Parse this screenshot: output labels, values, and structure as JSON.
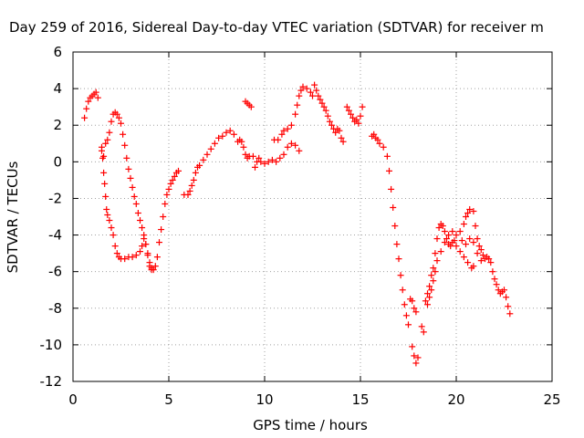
{
  "chart_data": {
    "type": "scatter",
    "title": "Day 259 of 2016, Sidereal Day-to-day VTEC variation (SDTVAR) for receiver m",
    "xlabel": "GPS time / hours",
    "ylabel": "SDTVAR / TECUs",
    "xlim": [
      0,
      25
    ],
    "ylim": [
      -12,
      6
    ],
    "xticks": [
      0,
      5,
      10,
      15,
      20,
      25
    ],
    "yticks": [
      -12,
      -10,
      -8,
      -6,
      -4,
      -2,
      0,
      2,
      4,
      6
    ],
    "grid": true,
    "legend": "none",
    "marker": "plus",
    "color": "#ff0000",
    "series": [
      {
        "values": [
          [
            0.6,
            2.4
          ],
          [
            0.7,
            2.9
          ],
          [
            0.8,
            3.3
          ],
          [
            0.9,
            3.5
          ],
          [
            1.0,
            3.6
          ],
          [
            1.1,
            3.7
          ],
          [
            1.2,
            3.8
          ],
          [
            1.3,
            3.5
          ],
          [
            1.5,
            0.6
          ],
          [
            1.55,
            0.2
          ],
          [
            1.6,
            -0.6
          ],
          [
            1.65,
            -1.2
          ],
          [
            1.7,
            -1.9
          ],
          [
            1.75,
            -2.6
          ],
          [
            1.8,
            -2.9
          ],
          [
            1.9,
            -3.2
          ],
          [
            2.0,
            -3.6
          ],
          [
            2.1,
            -4.0
          ],
          [
            2.2,
            -4.6
          ],
          [
            2.3,
            -5.0
          ],
          [
            2.4,
            -5.2
          ],
          [
            2.5,
            -5.3
          ],
          [
            2.7,
            -5.3
          ],
          [
            2.9,
            -5.2
          ],
          [
            3.1,
            -5.2
          ],
          [
            3.3,
            -5.1
          ],
          [
            3.5,
            -4.9
          ],
          [
            3.6,
            -4.6
          ],
          [
            3.7,
            -4.2
          ],
          [
            3.8,
            -4.5
          ],
          [
            3.9,
            -5.1
          ],
          [
            4.0,
            -5.5
          ],
          [
            4.1,
            -5.8
          ],
          [
            4.2,
            -5.9
          ],
          [
            4.3,
            -5.7
          ],
          [
            4.4,
            -5.2
          ],
          [
            4.5,
            -4.4
          ],
          [
            4.6,
            -3.7
          ],
          [
            4.7,
            -3.0
          ],
          [
            4.8,
            -2.3
          ],
          [
            4.9,
            -1.8
          ],
          [
            5.0,
            -1.5
          ],
          [
            5.1,
            -1.2
          ],
          [
            5.2,
            -1.0
          ],
          [
            5.3,
            -0.8
          ],
          [
            5.4,
            -0.6
          ],
          [
            5.5,
            -0.5
          ],
          [
            1.5,
            0.8
          ],
          [
            1.6,
            0.3
          ],
          [
            1.7,
            1.0
          ],
          [
            1.8,
            1.2
          ],
          [
            1.9,
            1.6
          ],
          [
            2.0,
            2.2
          ],
          [
            2.1,
            2.6
          ],
          [
            2.2,
            2.7
          ],
          [
            2.3,
            2.6
          ],
          [
            2.4,
            2.4
          ],
          [
            2.5,
            2.1
          ],
          [
            2.6,
            1.5
          ],
          [
            2.7,
            0.9
          ],
          [
            2.8,
            0.2
          ],
          [
            2.9,
            -0.4
          ],
          [
            3.0,
            -0.9
          ],
          [
            3.1,
            -1.4
          ],
          [
            3.2,
            -1.9
          ],
          [
            3.3,
            -2.3
          ],
          [
            3.4,
            -2.8
          ],
          [
            3.5,
            -3.2
          ],
          [
            3.6,
            -3.6
          ],
          [
            3.7,
            -4.0
          ],
          [
            3.8,
            -4.5
          ],
          [
            3.9,
            -5.0
          ],
          [
            4.0,
            -5.7
          ],
          [
            4.1,
            -5.9
          ],
          [
            5.8,
            -1.8
          ],
          [
            6.0,
            -1.8
          ],
          [
            6.1,
            -1.6
          ],
          [
            6.2,
            -1.3
          ],
          [
            6.3,
            -1.0
          ],
          [
            6.4,
            -0.6
          ],
          [
            6.5,
            -0.3
          ],
          [
            6.6,
            -0.2
          ],
          [
            6.8,
            0.1
          ],
          [
            7.0,
            0.4
          ],
          [
            7.2,
            0.7
          ],
          [
            7.4,
            1.0
          ],
          [
            7.6,
            1.3
          ],
          [
            7.8,
            1.4
          ],
          [
            8.0,
            1.6
          ],
          [
            8.2,
            1.7
          ],
          [
            8.4,
            1.5
          ],
          [
            8.6,
            1.1
          ],
          [
            8.7,
            1.2
          ],
          [
            8.8,
            1.1
          ],
          [
            8.9,
            0.8
          ],
          [
            9.0,
            0.4
          ],
          [
            9.1,
            0.2
          ],
          [
            9.2,
            0.3
          ],
          [
            9.4,
            0.3
          ],
          [
            9.5,
            -0.3
          ],
          [
            9.6,
            0.0
          ],
          [
            9.7,
            0.2
          ],
          [
            9.8,
            0.0
          ],
          [
            10.0,
            -0.1
          ],
          [
            10.2,
            0.0
          ],
          [
            10.4,
            0.1
          ],
          [
            10.6,
            0.0
          ],
          [
            10.8,
            0.2
          ],
          [
            11.0,
            0.4
          ],
          [
            11.2,
            0.8
          ],
          [
            11.4,
            1.0
          ],
          [
            11.6,
            0.9
          ],
          [
            11.8,
            0.6
          ],
          [
            9.0,
            3.3
          ],
          [
            9.1,
            3.2
          ],
          [
            9.2,
            3.1
          ],
          [
            9.3,
            3.0
          ],
          [
            10.5,
            1.2
          ],
          [
            10.7,
            1.2
          ],
          [
            10.9,
            1.5
          ],
          [
            11.0,
            1.7
          ],
          [
            11.2,
            1.8
          ],
          [
            11.4,
            2.0
          ],
          [
            11.6,
            2.6
          ],
          [
            11.7,
            3.1
          ],
          [
            11.8,
            3.6
          ],
          [
            11.9,
            3.9
          ],
          [
            12.0,
            4.1
          ],
          [
            12.2,
            4.0
          ],
          [
            12.4,
            3.8
          ],
          [
            12.5,
            3.6
          ],
          [
            12.6,
            4.2
          ],
          [
            12.7,
            3.9
          ],
          [
            12.8,
            3.6
          ],
          [
            12.9,
            3.4
          ],
          [
            13.0,
            3.2
          ],
          [
            13.1,
            3.0
          ],
          [
            13.2,
            2.8
          ],
          [
            13.3,
            2.5
          ],
          [
            13.4,
            2.2
          ],
          [
            13.5,
            2.0
          ],
          [
            13.6,
            1.8
          ],
          [
            13.7,
            1.6
          ],
          [
            13.8,
            1.8
          ],
          [
            13.9,
            1.7
          ],
          [
            14.0,
            1.3
          ],
          [
            14.1,
            1.1
          ],
          [
            14.3,
            3.0
          ],
          [
            14.4,
            2.8
          ],
          [
            14.5,
            2.6
          ],
          [
            14.6,
            2.4
          ],
          [
            14.7,
            2.2
          ],
          [
            14.8,
            2.3
          ],
          [
            14.9,
            2.1
          ],
          [
            15.0,
            2.5
          ],
          [
            15.1,
            3.0
          ],
          [
            15.6,
            1.4
          ],
          [
            15.7,
            1.5
          ],
          [
            15.8,
            1.3
          ],
          [
            15.9,
            1.2
          ],
          [
            16.0,
            1.0
          ],
          [
            16.2,
            0.8
          ],
          [
            16.4,
            0.3
          ],
          [
            16.5,
            -0.5
          ],
          [
            16.6,
            -1.5
          ],
          [
            16.7,
            -2.5
          ],
          [
            16.8,
            -3.5
          ],
          [
            16.9,
            -4.5
          ],
          [
            17.0,
            -5.3
          ],
          [
            17.1,
            -6.2
          ],
          [
            17.2,
            -7.0
          ],
          [
            17.3,
            -7.8
          ],
          [
            17.4,
            -8.4
          ],
          [
            17.5,
            -8.9
          ],
          [
            17.6,
            -7.5
          ],
          [
            17.7,
            -7.6
          ],
          [
            17.8,
            -8.0
          ],
          [
            17.9,
            -8.2
          ],
          [
            17.7,
            -10.1
          ],
          [
            17.8,
            -10.6
          ],
          [
            17.9,
            -11.0
          ],
          [
            18.0,
            -10.7
          ],
          [
            18.2,
            -9.0
          ],
          [
            18.3,
            -9.3
          ],
          [
            18.4,
            -7.6
          ],
          [
            18.5,
            -7.2
          ],
          [
            18.6,
            -6.8
          ],
          [
            18.7,
            -6.2
          ],
          [
            18.8,
            -5.8
          ],
          [
            18.9,
            -5.0
          ],
          [
            19.0,
            -4.2
          ],
          [
            19.1,
            -3.6
          ],
          [
            19.2,
            -3.4
          ],
          [
            19.3,
            -3.5
          ],
          [
            19.4,
            -3.8
          ],
          [
            19.5,
            -4.2
          ],
          [
            19.6,
            -4.5
          ],
          [
            19.7,
            -4.6
          ],
          [
            19.8,
            -4.4
          ],
          [
            19.9,
            -4.3
          ],
          [
            20.0,
            -4.6
          ],
          [
            20.2,
            -4.9
          ],
          [
            20.4,
            -5.2
          ],
          [
            20.6,
            -5.5
          ],
          [
            20.8,
            -5.8
          ],
          [
            20.9,
            -5.7
          ],
          [
            18.5,
            -7.8
          ],
          [
            18.6,
            -7.4
          ],
          [
            18.7,
            -7.0
          ],
          [
            18.8,
            -6.5
          ],
          [
            18.9,
            -6.0
          ],
          [
            19.0,
            -5.4
          ],
          [
            19.2,
            -4.9
          ],
          [
            19.4,
            -4.4
          ],
          [
            19.6,
            -4.0
          ],
          [
            19.8,
            -3.8
          ],
          [
            20.0,
            -4.0
          ],
          [
            20.2,
            -3.8
          ],
          [
            20.4,
            -3.4
          ],
          [
            20.5,
            -3.0
          ],
          [
            20.6,
            -2.8
          ],
          [
            20.7,
            -2.6
          ],
          [
            20.9,
            -2.7
          ],
          [
            21.0,
            -3.5
          ],
          [
            21.1,
            -4.2
          ],
          [
            21.2,
            -4.6
          ],
          [
            21.3,
            -4.8
          ],
          [
            21.4,
            -5.1
          ],
          [
            21.5,
            -5.3
          ],
          [
            21.6,
            -5.2
          ],
          [
            21.7,
            -5.3
          ],
          [
            21.8,
            -5.5
          ],
          [
            21.9,
            -6.0
          ],
          [
            22.0,
            -6.4
          ],
          [
            22.1,
            -6.7
          ],
          [
            22.2,
            -7.0
          ],
          [
            22.3,
            -7.2
          ],
          [
            22.4,
            -7.1
          ],
          [
            22.5,
            -7.0
          ],
          [
            22.6,
            -7.4
          ],
          [
            22.7,
            -7.9
          ],
          [
            22.8,
            -8.3
          ],
          [
            20.3,
            -4.3
          ],
          [
            20.5,
            -4.5
          ],
          [
            20.7,
            -4.2
          ],
          [
            20.9,
            -4.4
          ],
          [
            21.1,
            -5.0
          ],
          [
            21.3,
            -5.4
          ]
        ]
      }
    ]
  }
}
